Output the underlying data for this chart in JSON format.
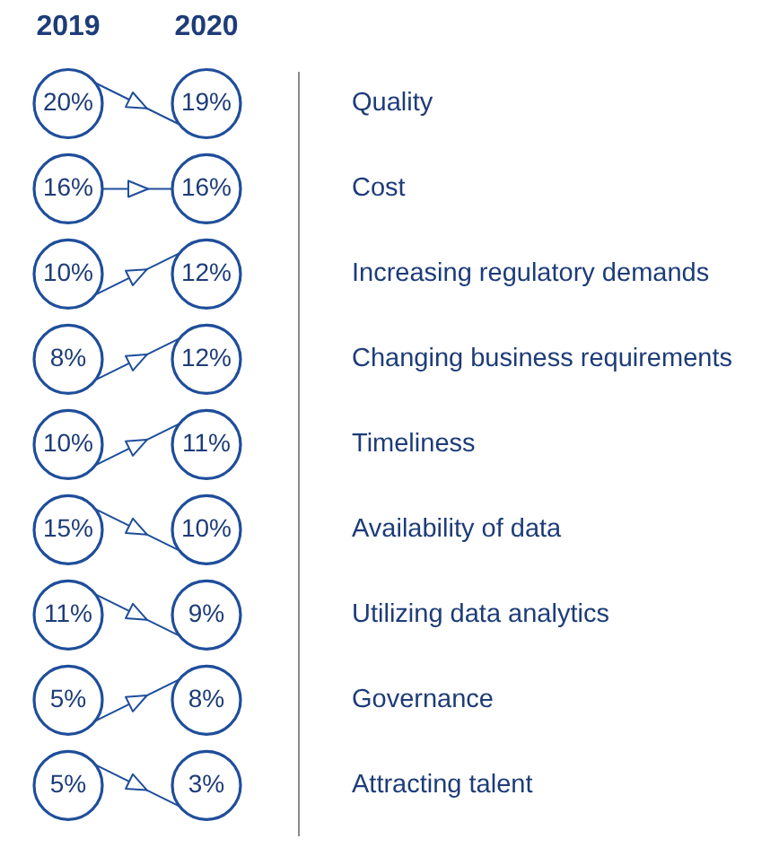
{
  "chart_data": {
    "type": "other",
    "categories": [
      "Quality",
      "Cost",
      "Increasing regulatory demands",
      "Changing business requirements",
      "Timeliness",
      "Availability of data",
      "Utilizing data analytics",
      "Governance",
      "Attracting talent"
    ],
    "series": [
      {
        "name": "2019",
        "color": "#1f4e9a",
        "values": [
          20,
          16,
          10,
          8,
          10,
          15,
          11,
          5,
          5
        ],
        "value_labels": [
          "20%",
          "16%",
          "10%",
          "8%",
          "10%",
          "15%",
          "11%",
          "5%",
          "5%"
        ]
      },
      {
        "name": "2020",
        "color": "#1f4e9a",
        "values": [
          19,
          16,
          12,
          12,
          11,
          10,
          9,
          8,
          3
        ],
        "value_labels": [
          "19%",
          "16%",
          "12%",
          "12%",
          "11%",
          "10%",
          "9%",
          "8%",
          "3%"
        ]
      }
    ]
  }
}
